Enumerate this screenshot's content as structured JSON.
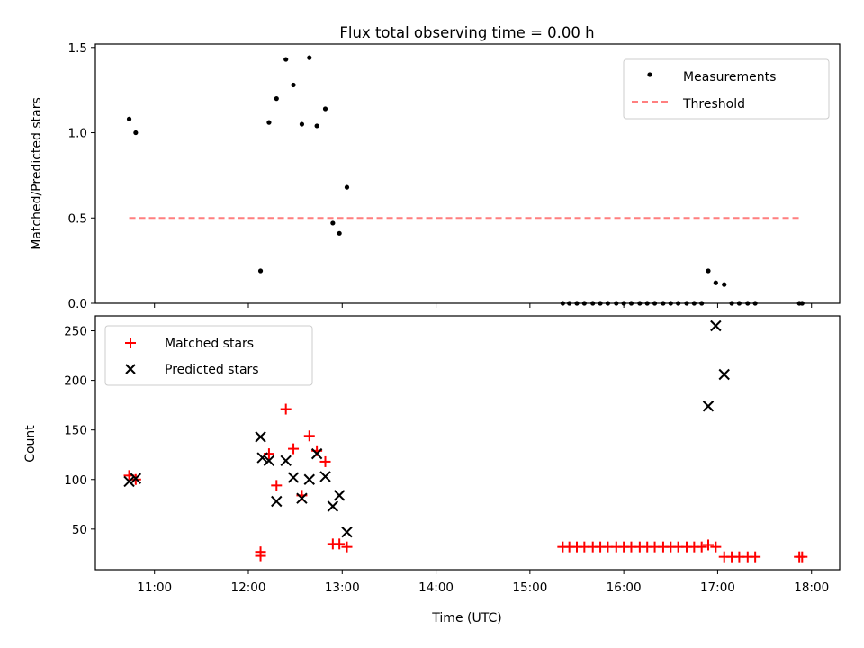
{
  "title": "Flux total observing time = 0.00 h",
  "chart_data": [
    {
      "type": "scatter",
      "ylabel": "Matched/Predicted stars",
      "xlim": [
        10.37,
        18.3
      ],
      "ylim": [
        0,
        1.52
      ],
      "yticks": [
        0,
        0.5,
        1.0,
        1.5
      ],
      "ytick_labels": [
        "0.0",
        "0.5",
        "1.0",
        "1.5"
      ],
      "legend_position": "top-right",
      "series": [
        {
          "name": "Measurements",
          "marker": "dot",
          "color": "#000000",
          "x": [
            10.73,
            10.8,
            12.13,
            12.22,
            12.3,
            12.4,
            12.48,
            12.57,
            12.65,
            12.73,
            12.82,
            12.9,
            12.97,
            13.05,
            15.35,
            15.42,
            15.5,
            15.58,
            15.67,
            15.75,
            15.83,
            15.92,
            16.0,
            16.08,
            16.17,
            16.25,
            16.33,
            16.42,
            16.5,
            16.58,
            16.67,
            16.75,
            16.83,
            16.9,
            16.98,
            17.07,
            17.15,
            17.23,
            17.32,
            17.4,
            17.87,
            17.9
          ],
          "y": [
            1.08,
            1.0,
            0.19,
            1.06,
            1.2,
            1.43,
            1.28,
            1.05,
            1.44,
            1.04,
            1.14,
            0.47,
            0.41,
            0.68,
            0,
            0,
            0,
            0,
            0,
            0,
            0,
            0,
            0,
            0,
            0,
            0,
            0,
            0,
            0,
            0,
            0,
            0,
            0,
            0.19,
            0.12,
            0.11,
            0,
            0,
            0,
            0,
            0,
            0
          ]
        },
        {
          "name": "Threshold",
          "line": "dashed",
          "color": "#ff7f7f",
          "x": [
            10.73,
            17.9
          ],
          "y": [
            0.5,
            0.5
          ]
        }
      ]
    },
    {
      "type": "scatter",
      "xlabel": "Time (UTC)",
      "ylabel": "Count",
      "xlim": [
        10.37,
        18.3
      ],
      "ylim": [
        9,
        265
      ],
      "yticks": [
        50,
        100,
        150,
        200,
        250
      ],
      "ytick_labels": [
        "50",
        "100",
        "150",
        "200",
        "250"
      ],
      "xticks": [
        11,
        12,
        13,
        14,
        15,
        16,
        17,
        18
      ],
      "xtick_labels": [
        "11:00",
        "12:00",
        "13:00",
        "14:00",
        "15:00",
        "16:00",
        "17:00",
        "18:00"
      ],
      "legend_position": "top-left",
      "series": [
        {
          "name": "Matched stars",
          "marker": "plus",
          "color": "#ff0000",
          "x": [
            10.73,
            10.8,
            12.13,
            12.13,
            12.22,
            12.3,
            12.4,
            12.48,
            12.57,
            12.65,
            12.73,
            12.82,
            12.9,
            12.97,
            13.05,
            15.35,
            15.42,
            15.5,
            15.58,
            15.67,
            15.75,
            15.83,
            15.92,
            16.0,
            16.08,
            16.17,
            16.25,
            16.33,
            16.42,
            16.5,
            16.58,
            16.67,
            16.75,
            16.83,
            16.9,
            16.98,
            17.07,
            17.15,
            17.23,
            17.32,
            17.4,
            17.87,
            17.9
          ],
          "y": [
            104,
            100,
            27,
            23,
            126,
            94,
            171,
            131,
            84,
            144,
            129,
            118,
            35,
            35,
            32,
            32,
            32,
            32,
            32,
            32,
            32,
            32,
            32,
            32,
            32,
            32,
            32,
            32,
            32,
            32,
            32,
            32,
            32,
            32,
            34,
            32,
            22,
            22,
            22,
            22,
            22,
            22,
            22
          ]
        },
        {
          "name": "Predicted stars",
          "marker": "x",
          "color": "#000000",
          "x": [
            10.73,
            10.8,
            12.13,
            12.15,
            12.22,
            12.3,
            12.4,
            12.48,
            12.57,
            12.65,
            12.73,
            12.82,
            12.9,
            12.97,
            13.05,
            16.9,
            16.98,
            17.07
          ],
          "y": [
            98,
            101,
            143,
            122,
            119,
            78,
            119,
            102,
            81,
            100,
            126,
            103,
            73,
            84,
            47,
            174,
            255,
            206
          ]
        }
      ]
    }
  ]
}
